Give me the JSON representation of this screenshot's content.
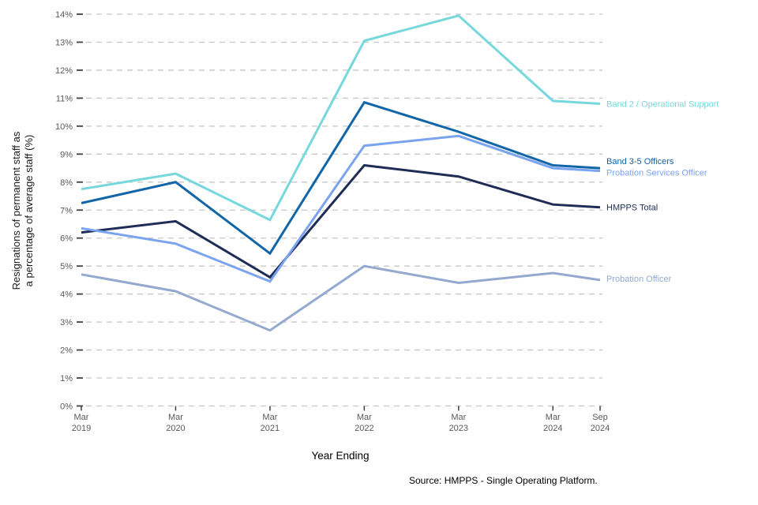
{
  "axes": {
    "y_title_line1": "Resignations of permanent staff as",
    "y_title_line2": "a percentage of average staff (%)",
    "x_title": "Year Ending",
    "y_tick_labels": [
      "0%",
      "1%",
      "2%",
      "3%",
      "4%",
      "5%",
      "6%",
      "7%",
      "8%",
      "9%",
      "10%",
      "11%",
      "12%",
      "13%",
      "14%"
    ],
    "x_tick_lines": [
      [
        "Mar",
        "2019"
      ],
      [
        "Mar",
        "2020"
      ],
      [
        "Mar",
        "2021"
      ],
      [
        "Mar",
        "2022"
      ],
      [
        "Mar",
        "2023"
      ],
      [
        "Mar",
        "2024"
      ],
      [
        "Sep",
        "2024"
      ]
    ]
  },
  "source_note": "Source: HMPPS - Single Operating Platform.",
  "chart_data": {
    "type": "line",
    "title": "",
    "xlabel": "Year Ending",
    "ylabel": "Resignations of permanent staff as a percentage of average staff (%)",
    "ylim": [
      0,
      14
    ],
    "ytick_step": 1,
    "grid": "horizontal-dashed",
    "legend_position": "right-of-line-ends",
    "categories": [
      "Mar 2019",
      "Mar 2020",
      "Mar 2021",
      "Mar 2022",
      "Mar 2023",
      "Mar 2024",
      "Sep 2024"
    ],
    "x_months_from_start": [
      0,
      12,
      24,
      36,
      48,
      60,
      66
    ],
    "series": [
      {
        "name": "Probation Officer",
        "color": "#93A9CF",
        "values": [
          4.7,
          4.1,
          2.7,
          5.0,
          4.4,
          4.75,
          4.5
        ]
      },
      {
        "name": "HMPPS Total",
        "color": "#1F2D56",
        "values": [
          6.2,
          6.6,
          4.6,
          8.6,
          8.2,
          7.2,
          7.1
        ]
      },
      {
        "name": "Probation Services Officer",
        "color": "#7AA3F0",
        "values": [
          6.35,
          5.8,
          4.45,
          9.3,
          9.65,
          8.5,
          8.4
        ]
      },
      {
        "name": "Band 3-5 Officers",
        "color": "#1265A7",
        "values": [
          7.25,
          8.0,
          5.45,
          10.85,
          9.8,
          8.6,
          8.5
        ]
      },
      {
        "name": "Band 2 / Operational Support",
        "color": "#76D8DC",
        "values": [
          7.75,
          8.3,
          6.65,
          13.05,
          13.95,
          10.9,
          10.8
        ]
      }
    ],
    "colors": {
      "gridline": "#c6c6c6",
      "tick": "#404040",
      "tick_label": "#595959"
    }
  }
}
